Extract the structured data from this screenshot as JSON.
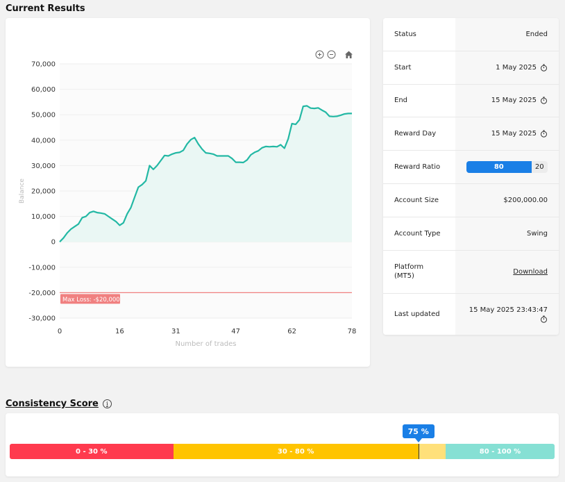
{
  "sections": {
    "current_results": "Current Results",
    "consistency_score": "Consistency Score"
  },
  "chart_data": {
    "type": "area",
    "x_label": "Number of trades",
    "y_label": "Balance",
    "x_ticks": [
      "0",
      "16",
      "31",
      "47",
      "62",
      "78"
    ],
    "y_ticks": [
      "70,000",
      "60,000",
      "50,000",
      "40,000",
      "30,000",
      "20,000",
      "10,000",
      "0",
      "-10,000",
      "-20,000",
      "-30,000"
    ],
    "xlim": [
      0,
      78
    ],
    "ylim": [
      -30000,
      70000
    ],
    "series_color": "#23b8a4",
    "fill_color": "#eaf7f4",
    "max_loss": {
      "value": -20000,
      "label": "Max Loss: -$20,000",
      "color": "#f08080"
    },
    "series": [
      {
        "x": [
          0,
          1,
          2,
          3,
          4,
          5,
          6,
          7,
          8,
          9,
          10,
          11,
          12,
          13,
          14,
          15,
          16,
          17,
          18,
          19,
          20,
          21,
          22,
          23,
          24,
          25,
          26,
          27,
          28,
          29,
          30,
          31,
          32,
          33,
          34,
          35,
          36,
          37,
          38,
          39,
          40,
          41,
          42,
          43,
          44,
          45,
          46,
          47,
          48,
          49,
          50,
          51,
          52,
          53,
          54,
          55,
          56,
          57,
          58,
          59,
          60,
          61,
          62,
          63,
          64,
          65,
          66,
          67,
          68,
          69,
          70,
          71,
          72,
          73,
          74,
          75,
          76,
          77,
          78
        ],
        "values": [
          0,
          1500,
          3500,
          5000,
          6000,
          7000,
          9500,
          10000,
          11500,
          12000,
          11500,
          11300,
          11000,
          10000,
          9000,
          8000,
          6500,
          7500,
          11000,
          13500,
          17500,
          21500,
          22500,
          24000,
          30000,
          28500,
          30000,
          32000,
          34000,
          33800,
          34500,
          35000,
          35200,
          36000,
          38500,
          40200,
          41000,
          38500,
          36500,
          35000,
          34800,
          34500,
          33800,
          33800,
          33800,
          33800,
          32800,
          31300,
          31300,
          31200,
          32200,
          34200,
          35200,
          35800,
          37000,
          37500,
          37400,
          37500,
          37400,
          38200,
          36800,
          40500,
          46500,
          46200,
          48000,
          53300,
          53500,
          52600,
          52500,
          52700,
          51800,
          51000,
          49400,
          49300,
          49400,
          49800,
          50300,
          50500,
          50500
        ]
      }
    ]
  },
  "info": {
    "status": {
      "label": "Status",
      "value": "Ended"
    },
    "start": {
      "label": "Start",
      "value": "1 May 2025"
    },
    "end": {
      "label": "End",
      "value": "15 May 2025"
    },
    "reward_day": {
      "label": "Reward Day",
      "value": "15 May 2025"
    },
    "reward_ratio": {
      "label": "Reward Ratio",
      "main": "80",
      "rest": "20",
      "main_pct": 80
    },
    "account_size": {
      "label": "Account Size",
      "value": "$200,000.00"
    },
    "account_type": {
      "label": "Account Type",
      "value": "Swing"
    },
    "platform": {
      "label_line1": "Platform",
      "label_line2": "(MT5)",
      "value": "Download"
    },
    "last_updated": {
      "label": "Last updated",
      "value": "15 May 2025 23:43:47"
    }
  },
  "consistency": {
    "score_label": "75 %",
    "score": 75,
    "segments": [
      {
        "label": "0 - 30 %",
        "from": 0,
        "to": 30,
        "color": "#ff3a4e"
      },
      {
        "label": "30 - 80 %",
        "from": 30,
        "to": 80,
        "color": "#ffc400"
      },
      {
        "label": "80 - 100 %",
        "from": 80,
        "to": 100,
        "color": "#86e0d4"
      }
    ],
    "remaining_color": "#ffe07a"
  }
}
